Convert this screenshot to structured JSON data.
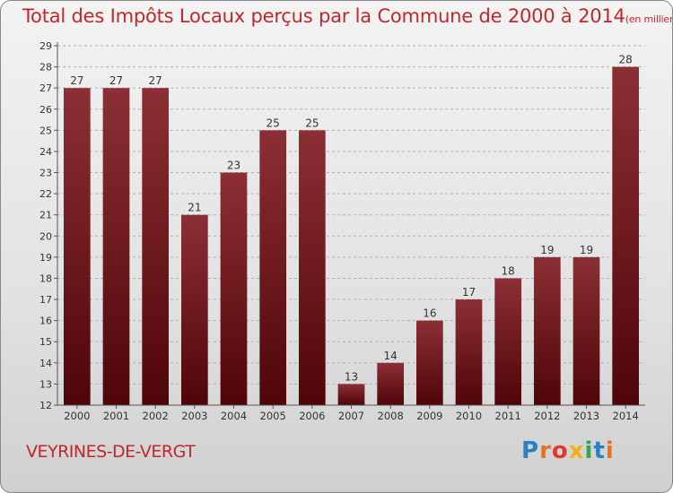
{
  "title": "Total des Impôts Locaux perçus par la Commune de 2000 à 2014",
  "title_unit": "(en milliers d'€)",
  "commune": "VEYRINES-DE-VERGT",
  "logo": {
    "text": "Proxiti",
    "letters": [
      "P",
      "r",
      "o",
      "x",
      "i",
      "t",
      "i"
    ],
    "colors": [
      "#2b7fc4",
      "#e8731c",
      "#e03a2f",
      "#f2b20f",
      "#3aa34a",
      "#2b7fc4",
      "#e8731c"
    ]
  },
  "colors": {
    "bar_top": "#8c2f36",
    "bar_bottom": "#4f0508",
    "title": "#c1272d",
    "grid": "#b0b0b0"
  },
  "chart_data": {
    "type": "bar",
    "categories": [
      "2000",
      "2001",
      "2002",
      "2003",
      "2004",
      "2005",
      "2006",
      "2007",
      "2008",
      "2009",
      "2010",
      "2011",
      "2012",
      "2013",
      "2014"
    ],
    "values": [
      27,
      27,
      27,
      21,
      23,
      25,
      25,
      13,
      14,
      16,
      17,
      18,
      19,
      19,
      28
    ],
    "title": "Total des Impôts Locaux perçus par la Commune de 2000 à 2014",
    "xlabel": "",
    "ylabel": "",
    "ylim": [
      12,
      29
    ],
    "yticks": [
      12,
      13,
      14,
      15,
      16,
      17,
      18,
      19,
      20,
      21,
      22,
      23,
      24,
      25,
      26,
      27,
      28,
      29
    ],
    "grid": true
  }
}
